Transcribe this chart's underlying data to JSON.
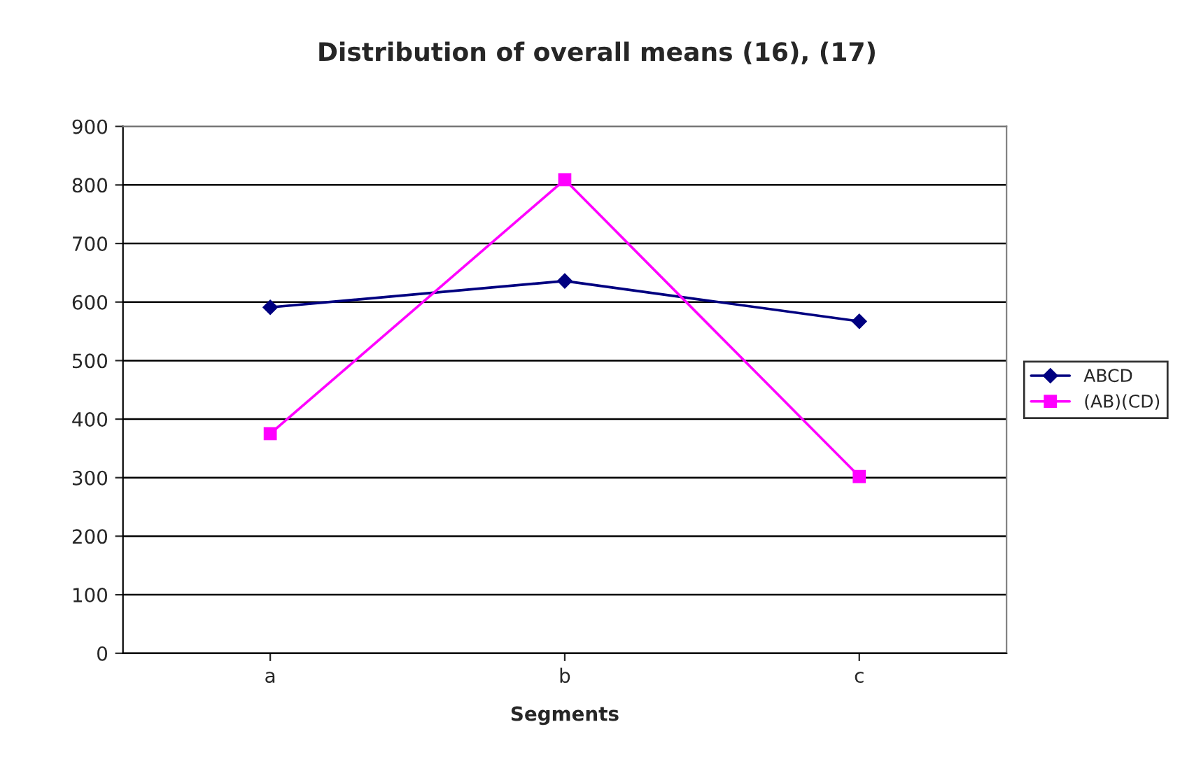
{
  "chart_data": {
    "type": "line",
    "title": "Distribution of overall means (16), (17)",
    "xlabel": "Segments",
    "categories": [
      "a",
      "b",
      "c"
    ],
    "series": [
      {
        "name": "ABCD",
        "color": "#000080",
        "marker": "diamond",
        "values": [
          591,
          636,
          567
        ]
      },
      {
        "name": "(AB)(CD)",
        "color": "#ff00ff",
        "marker": "square",
        "values": [
          375,
          809,
          302
        ]
      }
    ],
    "ylim": [
      0,
      900
    ],
    "yticks": [
      0,
      100,
      200,
      300,
      400,
      500,
      600,
      700,
      800,
      900
    ],
    "grid": "y",
    "legend": "right"
  }
}
